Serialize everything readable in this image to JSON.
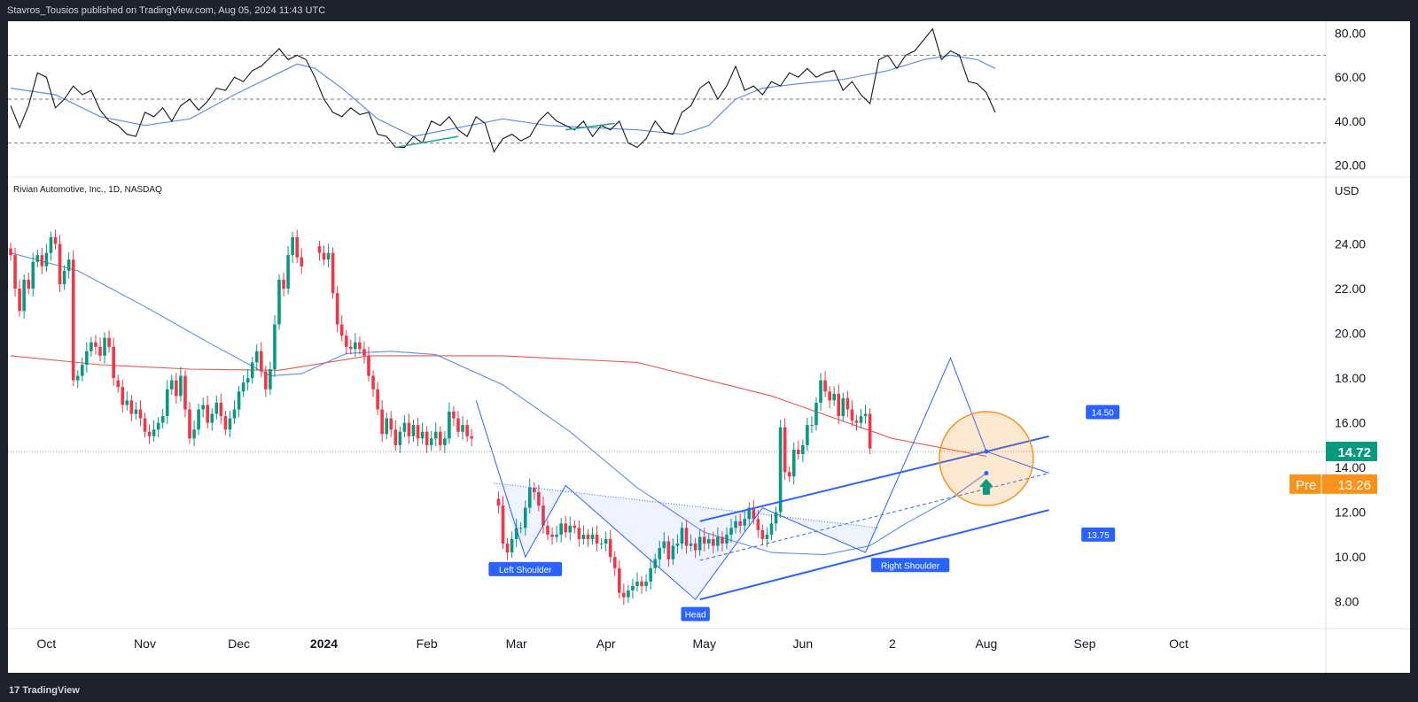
{
  "header": {
    "publish_line": "Stavros_Tousios published on TradingView.com, Aug 05, 2024 11:43 UTC"
  },
  "footer": {
    "brand": "TradingView",
    "brand_icon": "tradingview-logo-icon"
  },
  "symbol_title": "Rivian Automotive, Inc., 1D, NASDAQ",
  "currency": "USD",
  "x_axis": {
    "labels": [
      {
        "text": "Oct",
        "idx": 8
      },
      {
        "text": "Nov",
        "idx": 30
      },
      {
        "text": "Dec",
        "idx": 51
      },
      {
        "text": "2024",
        "idx": 70,
        "bold": true
      },
      {
        "text": "Feb",
        "idx": 93
      },
      {
        "text": "Mar",
        "idx": 113
      },
      {
        "text": "Apr",
        "idx": 133
      },
      {
        "text": "May",
        "idx": 155
      },
      {
        "text": "Jun",
        "idx": 177
      },
      {
        "text": "2",
        "idx": 197
      },
      {
        "text": "Aug",
        "idx": 218
      },
      {
        "text": "Sep",
        "idx": 240
      },
      {
        "text": "Oct",
        "idx": 261
      }
    ]
  },
  "rsi_panel": {
    "ticks": [
      "80.00",
      "60.00",
      "40.00",
      "20.00"
    ],
    "tick_values": [
      80,
      60,
      40,
      20
    ],
    "levels": [
      70,
      50,
      30
    ],
    "ylim": [
      14.5,
      85.5
    ]
  },
  "price_panel": {
    "ticks": [
      "24.00",
      "22.00",
      "20.00",
      "18.00",
      "16.00",
      "14.00",
      "12.00",
      "10.00",
      "8.00"
    ],
    "tick_values": [
      24,
      22,
      20,
      18,
      16,
      14,
      12,
      10,
      8
    ],
    "ylim": [
      6.8,
      26.2
    ],
    "last_price": {
      "label": "14.72",
      "value": 14.72,
      "color": "#089981"
    },
    "pre_market": {
      "tag": "Pre",
      "label": "13.26",
      "value": 13.26,
      "color": "#f7931a"
    },
    "annotations": {
      "left_shoulder": "Left Shoulder",
      "head": "Head",
      "right_shoulder": "Right Shoulder",
      "target_high": "14.50",
      "target_low": "13.75"
    }
  },
  "colors": {
    "up": "#089981",
    "down": "#f23645",
    "ma_blue": "#5b8def",
    "ma_red": "#ef5350",
    "rsi_line": "#131722",
    "trend": "#2962ff",
    "circle": "#f7931a",
    "arrow": "#089981"
  },
  "chart_data": {
    "type": "candlestick",
    "title": "Rivian Automotive, Inc., 1D, NASDAQ",
    "currency": "USD",
    "x_start_date": "2023-09-20",
    "x_interval": "1 trading day",
    "candle_groups": [
      {
        "start": 0,
        "closes": [
          23.5,
          22.0,
          21.0,
          22.4,
          22.0,
          23.2,
          23.5,
          23.0,
          23.6,
          24.3,
          24.0,
          22.2,
          22.8,
          23.3,
          17.9,
          18.1,
          18.6,
          19.2,
          19.6,
          19.4,
          19.0,
          19.8,
          19.4,
          18.0
        ]
      },
      {
        "start": 24,
        "closes": [
          17.6,
          16.8,
          17.0,
          16.4,
          16.6,
          16.2,
          15.6,
          15.4,
          15.7,
          16.0,
          16.3,
          17.5,
          17.9,
          17.2,
          18.1,
          16.6,
          15.3,
          15.7,
          16.6,
          16.8,
          16.0,
          16.4,
          16.9,
          16.3,
          15.7,
          16.2,
          16.6,
          17.4,
          17.8,
          18.0,
          18.7,
          19.2,
          18.3,
          17.5,
          18.4,
          20.4,
          22.4,
          22.0,
          23.5,
          24.3,
          23.4,
          23.0
        ]
      },
      {
        "start": 69,
        "closes": [
          23.6,
          23.3,
          23.6,
          21.8,
          20.4,
          19.9,
          19.4,
          19.3,
          19.6,
          19.3,
          19.0,
          18.1,
          17.5,
          16.6,
          15.5,
          16.2,
          15.7,
          15.0,
          15.6,
          16.0,
          15.4,
          15.9,
          15.3,
          15.6,
          15.0,
          15.3,
          15.6,
          15.0,
          15.3,
          16.5,
          16.2,
          15.6,
          15.9,
          15.4,
          15.3
        ]
      },
      {
        "start": 109,
        "closes": [
          12.3,
          10.6,
          10.2,
          10.8,
          11.3,
          11.3,
          12.2,
          13.1,
          12.9,
          12.3,
          11.4,
          11.0,
          10.9,
          11.0,
          11.5,
          11.1,
          11.4,
          11.3,
          10.8,
          11.0,
          10.8,
          11.0,
          10.6,
          10.6,
          10.8,
          10.0,
          9.5,
          8.4,
          8.2,
          8.5,
          8.7,
          8.9,
          8.7,
          8.9,
          9.5,
          9.9,
          10.4,
          10.7,
          9.9,
          10.5,
          10.6,
          11.3,
          10.5,
          10.6,
          10.3,
          10.9,
          10.6,
          10.8,
          10.5,
          10.9,
          10.6,
          11.0,
          11.3,
          11.6,
          11.4,
          11.7,
          12.2,
          11.7,
          11.2,
          10.8,
          11.0,
          11.5,
          12.0,
          15.8,
          13.8,
          13.6,
          14.8,
          14.6,
          15.0,
          15.9,
          15.9,
          16.9,
          17.9,
          17.4,
          17.0,
          17.3,
          16.3,
          17.1,
          16.6,
          16.1,
          16.0,
          16.3,
          16.4,
          14.85
        ]
      }
    ],
    "ma_red": [
      [
        0,
        19.0
      ],
      [
        20,
        18.6
      ],
      [
        40,
        18.4
      ],
      [
        60,
        18.35
      ],
      [
        80,
        19.0
      ],
      [
        110,
        19.0
      ],
      [
        140,
        18.7
      ],
      [
        170,
        17.2
      ],
      [
        197,
        15.3
      ],
      [
        218,
        14.5
      ]
    ],
    "ma_blue": [
      [
        0,
        23.6
      ],
      [
        15,
        22.8
      ],
      [
        30,
        21.2
      ],
      [
        45,
        19.5
      ],
      [
        58,
        18.1
      ],
      [
        65,
        18.2
      ],
      [
        75,
        19.1
      ],
      [
        85,
        19.2
      ],
      [
        95,
        19.05
      ],
      [
        110,
        17.7
      ],
      [
        125,
        15.6
      ],
      [
        140,
        13.1
      ],
      [
        155,
        11.1
      ],
      [
        170,
        10.2
      ],
      [
        182,
        10.1
      ],
      [
        192,
        10.5
      ],
      [
        200,
        11.5
      ],
      [
        210,
        12.6
      ],
      [
        218,
        13.75
      ]
    ],
    "rsi": [
      [
        0,
        47
      ],
      [
        2,
        37
      ],
      [
        4,
        47
      ],
      [
        6,
        62
      ],
      [
        8,
        60
      ],
      [
        10,
        46
      ],
      [
        12,
        50
      ],
      [
        14,
        56
      ],
      [
        16,
        52
      ],
      [
        18,
        54
      ],
      [
        20,
        45
      ],
      [
        22,
        40
      ],
      [
        24,
        38
      ],
      [
        26,
        34
      ],
      [
        28,
        33
      ],
      [
        30,
        44
      ],
      [
        32,
        42
      ],
      [
        34,
        46
      ],
      [
        36,
        40
      ],
      [
        38,
        47
      ],
      [
        40,
        50
      ],
      [
        42,
        45
      ],
      [
        44,
        49
      ],
      [
        46,
        55
      ],
      [
        48,
        54
      ],
      [
        50,
        60
      ],
      [
        52,
        58
      ],
      [
        54,
        63
      ],
      [
        56,
        65
      ],
      [
        58,
        69
      ],
      [
        60,
        73
      ],
      [
        62,
        68
      ],
      [
        64,
        70
      ],
      [
        66,
        68
      ],
      [
        68,
        60
      ],
      [
        70,
        50
      ],
      [
        72,
        44
      ],
      [
        74,
        42
      ],
      [
        76,
        46
      ],
      [
        78,
        43
      ],
      [
        80,
        44
      ],
      [
        82,
        34
      ],
      [
        84,
        33
      ],
      [
        86,
        28
      ],
      [
        88,
        28
      ],
      [
        90,
        33
      ],
      [
        92,
        30
      ],
      [
        94,
        40
      ],
      [
        96,
        38
      ],
      [
        98,
        42
      ],
      [
        100,
        36
      ],
      [
        102,
        33
      ],
      [
        104,
        42
      ],
      [
        106,
        39
      ],
      [
        108,
        26
      ],
      [
        110,
        32
      ],
      [
        112,
        34
      ],
      [
        114,
        31
      ],
      [
        116,
        33
      ],
      [
        118,
        40
      ],
      [
        120,
        44
      ],
      [
        122,
        40
      ],
      [
        124,
        38
      ],
      [
        126,
        36
      ],
      [
        128,
        40
      ],
      [
        130,
        33
      ],
      [
        132,
        38
      ],
      [
        134,
        36
      ],
      [
        136,
        40
      ],
      [
        138,
        30
      ],
      [
        140,
        28
      ],
      [
        142,
        32
      ],
      [
        144,
        40
      ],
      [
        146,
        35
      ],
      [
        148,
        34
      ],
      [
        150,
        44
      ],
      [
        152,
        47
      ],
      [
        154,
        55
      ],
      [
        156,
        58
      ],
      [
        158,
        50
      ],
      [
        160,
        56
      ],
      [
        162,
        65
      ],
      [
        164,
        54
      ],
      [
        166,
        56
      ],
      [
        168,
        52
      ],
      [
        170,
        58
      ],
      [
        172,
        56
      ],
      [
        174,
        62
      ],
      [
        176,
        60
      ],
      [
        178,
        64
      ],
      [
        180,
        60
      ],
      [
        182,
        62
      ],
      [
        184,
        63
      ],
      [
        186,
        54
      ],
      [
        188,
        58
      ],
      [
        190,
        52
      ],
      [
        192,
        48
      ],
      [
        194,
        68
      ],
      [
        196,
        70
      ],
      [
        198,
        64
      ],
      [
        200,
        70
      ],
      [
        202,
        72
      ],
      [
        204,
        77
      ],
      [
        206,
        82
      ],
      [
        208,
        68
      ],
      [
        210,
        72
      ],
      [
        212,
        70
      ],
      [
        214,
        58
      ],
      [
        216,
        57
      ],
      [
        218,
        53
      ],
      [
        220,
        44
      ]
    ],
    "rsi_ma": [
      [
        0,
        55
      ],
      [
        10,
        52
      ],
      [
        20,
        42
      ],
      [
        30,
        38
      ],
      [
        40,
        41
      ],
      [
        50,
        52
      ],
      [
        58,
        60
      ],
      [
        64,
        66
      ],
      [
        68,
        64
      ],
      [
        74,
        55
      ],
      [
        82,
        41
      ],
      [
        90,
        33
      ],
      [
        100,
        37
      ],
      [
        110,
        41
      ],
      [
        120,
        38
      ],
      [
        130,
        37
      ],
      [
        140,
        36
      ],
      [
        150,
        34
      ],
      [
        156,
        38
      ],
      [
        162,
        50
      ],
      [
        168,
        55
      ],
      [
        176,
        57
      ],
      [
        186,
        59
      ],
      [
        196,
        63
      ],
      [
        204,
        68
      ],
      [
        210,
        70
      ],
      [
        216,
        68
      ],
      [
        220,
        64
      ]
    ],
    "rsi_divergence_segments": [
      [
        [
          86,
          28
        ],
        [
          100,
          33
        ]
      ],
      [
        [
          124,
          36
        ],
        [
          135,
          39
        ]
      ]
    ],
    "pattern": {
      "left_shoulder": {
        "idx": 115,
        "price": 10.0
      },
      "head": {
        "idx": 153,
        "price": 8.1
      },
      "right_shoulder": {
        "idx": 191,
        "price": 10.2
      },
      "neckline": [
        [
          108,
          13.3
        ],
        [
          194,
          11.3
        ]
      ]
    },
    "zigzag": [
      [
        104,
        17.0
      ],
      [
        115,
        10.0
      ],
      [
        124,
        13.2
      ],
      [
        153,
        8.1
      ],
      [
        168,
        12.2
      ],
      [
        191,
        10.2
      ],
      [
        210,
        18.9
      ],
      [
        218,
        14.72
      ],
      [
        232,
        13.75
      ]
    ],
    "channel_upper": [
      [
        154,
        11.6
      ],
      [
        232,
        15.4
      ]
    ],
    "channel_lower": [
      [
        154,
        8.1
      ],
      [
        232,
        12.1
      ]
    ],
    "channel_mid_dashed": [
      [
        154,
        9.85
      ],
      [
        232,
        13.75
      ]
    ],
    "target_circle": {
      "idx": 218,
      "price": 14.4
    },
    "ylim": [
      6.8,
      26.2
    ]
  }
}
